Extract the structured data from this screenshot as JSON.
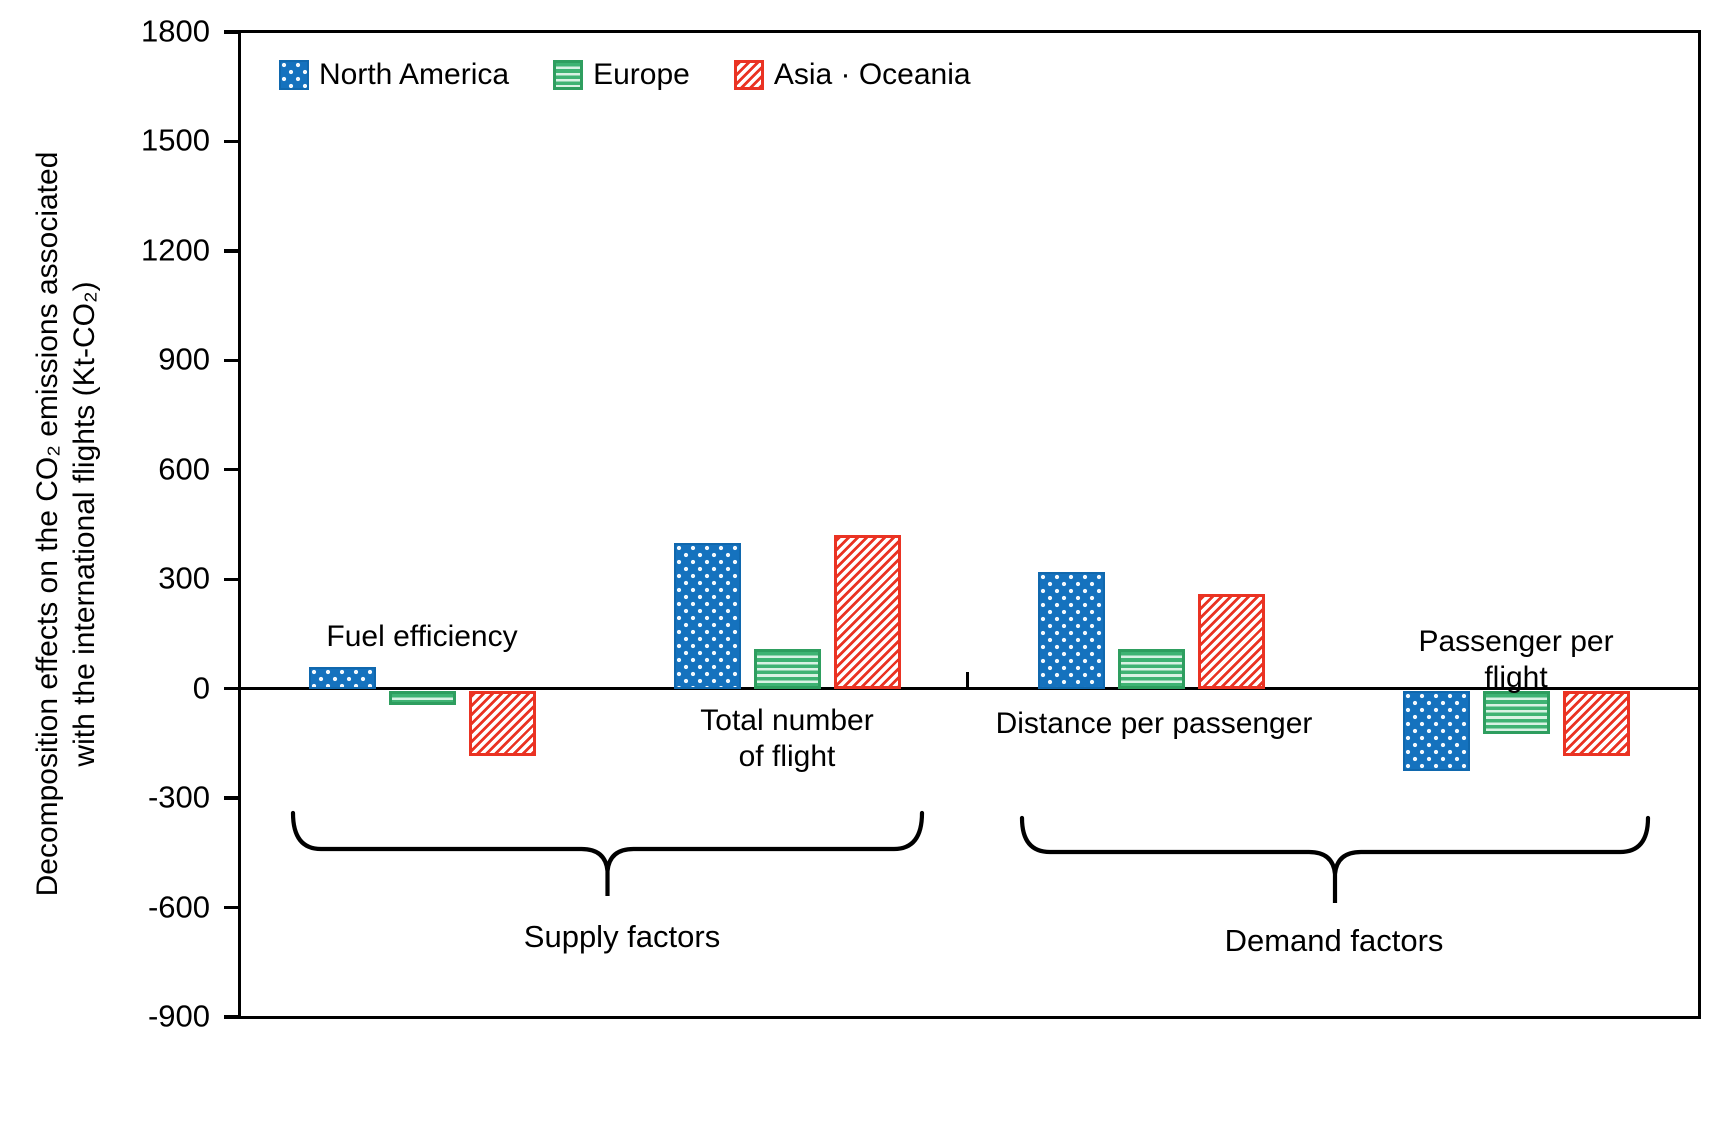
{
  "chart_data": {
    "type": "bar",
    "title": "",
    "ylabel": "Decomposition effects on the CO₂ emissions associated with the international flights (Kt-CO₂)",
    "ylabel_lines": [
      "Decomposition effects on the CO₂ emissions associated",
      "with the international flights (Kt-CO₂)"
    ],
    "xlabel": "",
    "ylim": [
      -900,
      1800
    ],
    "ytick_step": 300,
    "yticks": [
      1800,
      1500,
      1200,
      900,
      600,
      300,
      0,
      -300,
      -600,
      -900
    ],
    "grid": false,
    "legend_position": "top-left",
    "categories": [
      "Fuel efficiency",
      "Total number of flight",
      "Distance per passenger",
      "Passenger per flight"
    ],
    "categories_display": [
      "Fuel efficiency",
      "Total number\nof flight",
      "Distance per passenger",
      "Passenger per flight"
    ],
    "series": [
      {
        "name": "North America",
        "pattern": "dots",
        "color": "#1572BE",
        "values": [
          60,
          400,
          320,
          -220
        ]
      },
      {
        "name": "Europe",
        "pattern": "hlines",
        "color": "#3EB373",
        "values": [
          -40,
          110,
          110,
          -120
        ]
      },
      {
        "name": "Asia · Oceania",
        "pattern": "diag",
        "color": "#EA3323",
        "values": [
          -180,
          420,
          260,
          -180
        ]
      }
    ],
    "group_annotations": [
      {
        "label": "Supply factors",
        "categories": [
          "Fuel efficiency",
          "Total number of flight"
        ]
      },
      {
        "label": "Demand factors",
        "categories": [
          "Distance per passenger",
          "Passenger per flight"
        ]
      }
    ],
    "axis_color": "#000000",
    "background": "#FFFFFF",
    "unit": "Kt-CO₂"
  }
}
